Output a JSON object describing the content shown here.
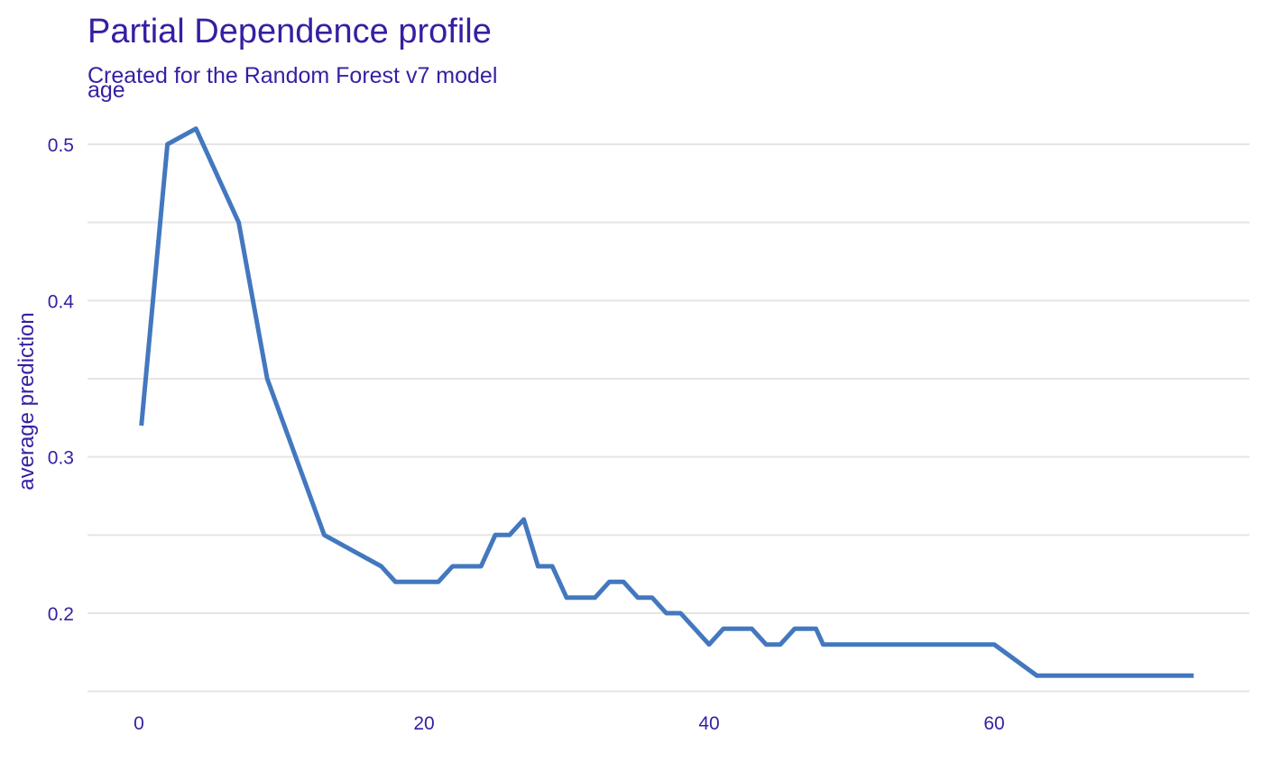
{
  "chart_data": {
    "type": "line",
    "title": "Partial Dependence profile",
    "subtitle": "Created for the Random Forest v7 model",
    "facet_label": "age",
    "xlabel": "",
    "ylabel": "average prediction",
    "xlim": [
      -3.5,
      78
    ],
    "ylim": [
      0.15,
      0.525
    ],
    "x_ticks": [
      0,
      20,
      40,
      60
    ],
    "y_ticks": [
      0.2,
      0.3,
      0.4,
      0.5
    ],
    "y_gridlines": [
      0.15,
      0.2,
      0.25,
      0.3,
      0.35,
      0.4,
      0.45,
      0.5
    ],
    "grid": true,
    "line_color": "#4378bf",
    "text_color": "#371ea3",
    "grid_color": "#e5e5e5",
    "series": [
      {
        "x": [
          0.17,
          2,
          4,
          7,
          9,
          11,
          13,
          15,
          17,
          18,
          21,
          22,
          24,
          25,
          26,
          27,
          28,
          29,
          30,
          32,
          33,
          34,
          35,
          36,
          37,
          38,
          40,
          41,
          43,
          44,
          45,
          46,
          47.5,
          48,
          55,
          60,
          63,
          74
        ],
        "y": [
          0.32,
          0.5,
          0.51,
          0.45,
          0.35,
          0.3,
          0.25,
          0.24,
          0.23,
          0.22,
          0.22,
          0.23,
          0.23,
          0.25,
          0.25,
          0.26,
          0.23,
          0.23,
          0.21,
          0.21,
          0.22,
          0.22,
          0.21,
          0.21,
          0.2,
          0.2,
          0.18,
          0.19,
          0.19,
          0.18,
          0.18,
          0.19,
          0.19,
          0.18,
          0.18,
          0.18,
          0.16,
          0.16
        ]
      }
    ]
  }
}
